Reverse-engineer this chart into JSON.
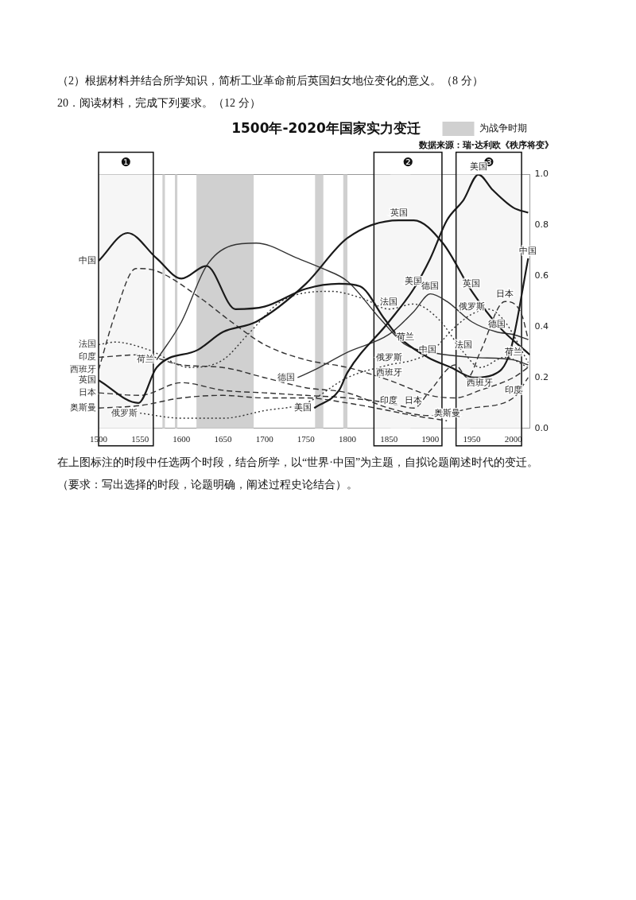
{
  "chart_data": {
    "type": "line",
    "title": "1500年-2020年国家实力变迁",
    "subtitle": "数据来源：瑞·达利欧《秩序将变》",
    "annotations": [
      "（2）根据材料并结合所学知识，简析工业革命前后英国妇女地位变化的意义。（8 分）",
      "20．阅读材料，完成下列要求。（12 分）",
      "在上图标注的时段中任选两个时段，结合所学，以“世界·中国”为主题，自拟论题阐述时代的变迁。",
      "（要求：写出选择的时段，论题明确，阐述过程史论结合）。",
      {
        "text": "英国",
        "x": 1862,
        "y": 0.82
      },
      {
        "text": "英国",
        "x": 1950,
        "y": 0.54
      },
      {
        "text": "美国",
        "x": 1880,
        "y": 0.55
      },
      {
        "text": "美国",
        "x": 1958,
        "y": 1.0
      },
      {
        "text": "德国",
        "x": 1900,
        "y": 0.53
      },
      {
        "text": "德国",
        "x": 1980,
        "y": 0.38
      },
      {
        "text": "法国",
        "x": 1850,
        "y": 0.47
      },
      {
        "text": "法国",
        "x": 1940,
        "y": 0.3
      },
      {
        "text": "荷兰",
        "x": 1870,
        "y": 0.33
      },
      {
        "text": "荷兰",
        "x": 2000,
        "y": 0.27
      },
      {
        "text": "俄罗斯",
        "x": 1850,
        "y": 0.25
      },
      {
        "text": "俄罗斯",
        "x": 1950,
        "y": 0.45
      },
      {
        "text": "中国",
        "x": 1897,
        "y": 0.28
      },
      {
        "text": "中国",
        "x": 2018,
        "y": 0.67
      },
      {
        "text": "西班牙",
        "x": 1850,
        "y": 0.19
      },
      {
        "text": "西班牙",
        "x": 1960,
        "y": 0.15
      },
      {
        "text": "日本",
        "x": 1880,
        "y": 0.08
      },
      {
        "text": "日本",
        "x": 1990,
        "y": 0.5
      },
      {
        "text": "印度",
        "x": 1850,
        "y": 0.08
      },
      {
        "text": "印度",
        "x": 2000,
        "y": 0.12
      },
      {
        "text": "奥斯曼",
        "x": 1920,
        "y": 0.03
      }
    ],
    "xlim": [
      1500,
      2020
    ],
    "xticks": [
      1500,
      1550,
      1600,
      1650,
      1700,
      1750,
      1800,
      1850,
      1900,
      1950,
      2000
    ],
    "ylim": [
      0,
      1
    ],
    "yticks": [
      {
        "value": 0,
        "label": "0.0"
      },
      {
        "value": 0.2,
        "label": "0.2"
      },
      {
        "value": 0.4,
        "label": "0.4"
      },
      {
        "value": 0.6,
        "label": "0.6"
      },
      {
        "value": 0.8,
        "label": "0.8"
      },
      {
        "value": 1,
        "label": "1.0"
      }
    ],
    "grid": false,
    "legend": "top right",
    "marker": "none",
    "bands": [
      {
        "axis": "x",
        "from": 1577,
        "to": 1580,
        "color": "#d0d0d0",
        "label": "为战争时期"
      },
      {
        "axis": "x",
        "from": 1592,
        "to": 1595,
        "color": "#d0d0d0"
      },
      {
        "axis": "x",
        "from": 1618,
        "to": 1687,
        "color": "#d0d0d0"
      },
      {
        "axis": "x",
        "from": 1761,
        "to": 1771,
        "color": "#d0d0d0"
      },
      {
        "axis": "x",
        "from": 1795,
        "to": 1800,
        "color": "#d0d0d0"
      },
      {
        "axis": "x",
        "from": 1852,
        "to": 1876,
        "color": "#d0d0d0"
      },
      {
        "axis": "x",
        "from": 1932,
        "to": 1948,
        "color": "#d0d0d0"
      },
      {
        "axis": "x",
        "from": 1500,
        "to": 1566,
        "color": "#f6f6f6",
        "label": "❶"
      },
      {
        "axis": "x",
        "from": 1832,
        "to": 1914,
        "color": "#f6f6f6",
        "label": "❷"
      },
      {
        "axis": "x",
        "from": 1931,
        "to": 2010,
        "color": "#f6f6f6",
        "label": "❸"
      }
    ],
    "series": [
      {
        "name": "中国",
        "color": "#1a1a1a",
        "line_style": "solid",
        "x": [
          1500,
          1535,
          1570,
          1600,
          1630,
          1665,
          1700,
          1750,
          1790,
          1815,
          1845,
          1862,
          1897,
          1925,
          1953,
          1975,
          1996,
          2018
        ],
        "values": [
          0.66,
          0.77,
          0.67,
          0.59,
          0.64,
          0.47,
          0.48,
          0.55,
          0.57,
          0.56,
          0.43,
          0.36,
          0.28,
          0.24,
          0.2,
          0.21,
          0.3,
          0.67
        ]
      },
      {
        "name": "英国",
        "color": "#1a1a1a",
        "line_style": "solid",
        "x": [
          1500,
          1548,
          1570,
          1620,
          1650,
          1690,
          1750,
          1800,
          1862,
          1880,
          1915,
          1950,
          1983,
          2020
        ],
        "values": [
          0.19,
          0.1,
          0.24,
          0.31,
          0.38,
          0.42,
          0.57,
          0.75,
          0.82,
          0.82,
          0.73,
          0.54,
          0.4,
          0.29
        ]
      },
      {
        "name": "美国",
        "color": "#1a1a1a",
        "line_style": "solid",
        "x": [
          1760,
          1790,
          1800,
          1850,
          1880,
          1900,
          1920,
          1940,
          1958,
          1975,
          2000,
          2018
        ],
        "values": [
          0.08,
          0.15,
          0.22,
          0.42,
          0.55,
          0.67,
          0.82,
          0.9,
          1.0,
          0.94,
          0.87,
          0.85
        ]
      },
      {
        "name": "荷兰",
        "color": "#333333",
        "line_style": "solid",
        "x": [
          1570,
          1600,
          1630,
          1660,
          1690,
          1740,
          1770,
          1800,
          1840,
          1870,
          1900,
          1950,
          2000,
          2018
        ],
        "values": [
          0.27,
          0.42,
          0.64,
          0.72,
          0.73,
          0.67,
          0.63,
          0.58,
          0.43,
          0.33,
          0.3,
          0.28,
          0.27,
          0.25
        ]
      },
      {
        "name": "德国",
        "color": "#333333",
        "line_style": "solid",
        "x": [
          1740,
          1760,
          1800,
          1850,
          1880,
          1900,
          1920,
          1950,
          1980,
          2000,
          2018
        ],
        "values": [
          0.2,
          0.23,
          0.3,
          0.37,
          0.46,
          0.53,
          0.5,
          0.42,
          0.38,
          0.37,
          0.35
        ]
      },
      {
        "name": "法国",
        "color": "#333333",
        "line_style": "dotted",
        "x": [
          1500,
          1520,
          1560,
          1610,
          1650,
          1680,
          1720,
          1780,
          1820,
          1850,
          1880,
          1910,
          1940,
          1960,
          1990,
          2018
        ],
        "values": [
          0.33,
          0.34,
          0.31,
          0.24,
          0.27,
          0.37,
          0.5,
          0.54,
          0.51,
          0.47,
          0.49,
          0.43,
          0.3,
          0.24,
          0.28,
          0.24
        ]
      },
      {
        "name": "西班牙",
        "color": "#333333",
        "line_style": "dashed",
        "x": [
          1500,
          1520,
          1545,
          1570,
          1620,
          1660,
          1700,
          1750,
          1800,
          1850,
          1900,
          1930,
          1960,
          2000,
          2018
        ],
        "values": [
          0.23,
          0.45,
          0.63,
          0.62,
          0.52,
          0.42,
          0.33,
          0.27,
          0.24,
          0.19,
          0.13,
          0.12,
          0.15,
          0.2,
          0.24
        ]
      },
      {
        "name": "印度",
        "color": "#333333",
        "line_style": "dashed",
        "x": [
          1500,
          1550,
          1600,
          1650,
          1700,
          1750,
          1800,
          1850,
          1900,
          1950,
          2000,
          2018
        ],
        "values": [
          0.28,
          0.29,
          0.25,
          0.24,
          0.2,
          0.16,
          0.14,
          0.08,
          0.05,
          0.08,
          0.12,
          0.2
        ]
      },
      {
        "name": "日本",
        "color": "#333333",
        "line_style": "dashed",
        "x": [
          1500,
          1550,
          1600,
          1650,
          1700,
          1750,
          1800,
          1850,
          1880,
          1900,
          1930,
          1945,
          1960,
          1990,
          2010,
          2018
        ],
        "values": [
          0.14,
          0.13,
          0.18,
          0.15,
          0.14,
          0.13,
          0.12,
          0.1,
          0.08,
          0.15,
          0.25,
          0.2,
          0.3,
          0.5,
          0.45,
          0.35
        ]
      },
      {
        "name": "奥斯曼",
        "color": "#333333",
        "line_style": "dashed",
        "x": [
          1500,
          1550,
          1600,
          1650,
          1700,
          1750,
          1800,
          1850,
          1880,
          1900,
          1920
        ],
        "values": [
          0.08,
          0.09,
          0.12,
          0.13,
          0.12,
          0.12,
          0.1,
          0.07,
          0.05,
          0.04,
          0.03
        ]
      },
      {
        "name": "俄罗斯",
        "color": "#333333",
        "line_style": "dotted",
        "x": [
          1550,
          1600,
          1650,
          1700,
          1750,
          1800,
          1850,
          1880,
          1900,
          1930,
          1950,
          1970,
          1990,
          2018
        ],
        "values": [
          0.06,
          0.04,
          0.04,
          0.07,
          0.1,
          0.2,
          0.25,
          0.27,
          0.3,
          0.4,
          0.45,
          0.47,
          0.42,
          0.26
        ]
      }
    ]
  }
}
